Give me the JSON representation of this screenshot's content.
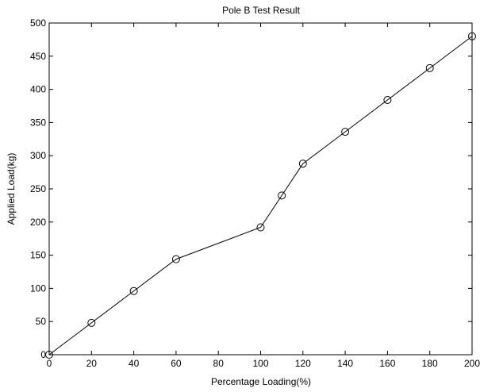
{
  "chart_data": {
    "type": "line",
    "title": "Pole B Test Result",
    "xlabel": "Percentage Loading(%)",
    "ylabel": "Applied Load(kg)",
    "xlim": [
      0,
      200
    ],
    "ylim": [
      0,
      500
    ],
    "xticks": [
      0,
      20,
      40,
      60,
      80,
      100,
      120,
      140,
      160,
      180,
      200
    ],
    "yticks": [
      0,
      50,
      100,
      150,
      200,
      250,
      300,
      350,
      400,
      450,
      500
    ],
    "grid": false,
    "marker": "circle",
    "series": [
      {
        "x": [
          0,
          20,
          40,
          60,
          100,
          110,
          120,
          140,
          160,
          180,
          200
        ],
        "y": [
          0,
          48,
          96,
          144,
          192,
          240,
          288,
          336,
          384,
          432,
          480
        ]
      }
    ]
  },
  "colors": {
    "line": "#000000",
    "axes": "#000000",
    "background": "#ffffff"
  }
}
